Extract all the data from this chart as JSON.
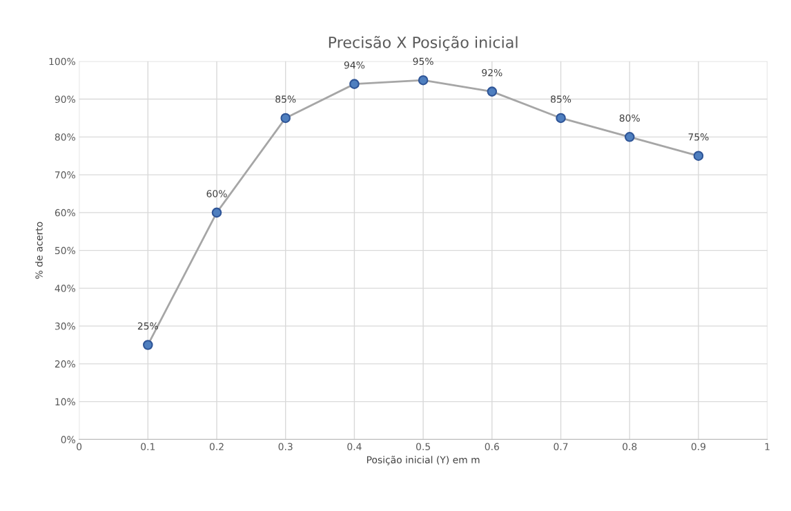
{
  "chart_data": {
    "type": "line",
    "title": "Precisão X Posição inicial",
    "xlabel": "Posição inicial (Y) em m",
    "ylabel": "% de acerto",
    "x": [
      0.1,
      0.2,
      0.3,
      0.4,
      0.5,
      0.6,
      0.7,
      0.8,
      0.9
    ],
    "series": [
      {
        "color": "#a6a6a6",
        "colors": [
          "#4f7fbf",
          "#4f7fbf",
          "#4f7fbf",
          "#4f7fbf",
          "#4f7fbf",
          "#4f7fbf",
          "#4f7fbf",
          "#4f7fbf",
          "#4f7fbf"
        ],
        "values": [
          25,
          60,
          85,
          94,
          95,
          92,
          85,
          80,
          75
        ],
        "value_labels": [
          "25%",
          "60%",
          "85%",
          "94%",
          "95%",
          "92%",
          "85%",
          "80%",
          "75%"
        ]
      }
    ],
    "xlim": [
      0,
      1
    ],
    "xticks": [
      0,
      0.1,
      0.2,
      0.3,
      0.4,
      0.5,
      0.6,
      0.7,
      0.8,
      0.9,
      1
    ],
    "ylim": [
      0,
      100
    ],
    "yticks": [
      {
        "value": 0,
        "label": "0%"
      },
      {
        "value": 10,
        "label": "10%"
      },
      {
        "value": 20,
        "label": "20%"
      },
      {
        "value": 30,
        "label": "30%"
      },
      {
        "value": 40,
        "label": "40%"
      },
      {
        "value": 50,
        "label": "50%"
      },
      {
        "value": 60,
        "label": "60%"
      },
      {
        "value": 70,
        "label": "70%"
      },
      {
        "value": 80,
        "label": "80%"
      },
      {
        "value": 90,
        "label": "90%"
      },
      {
        "value": 100,
        "label": "100%"
      }
    ],
    "grid": true,
    "marker": "circle",
    "line_style": "solid"
  }
}
